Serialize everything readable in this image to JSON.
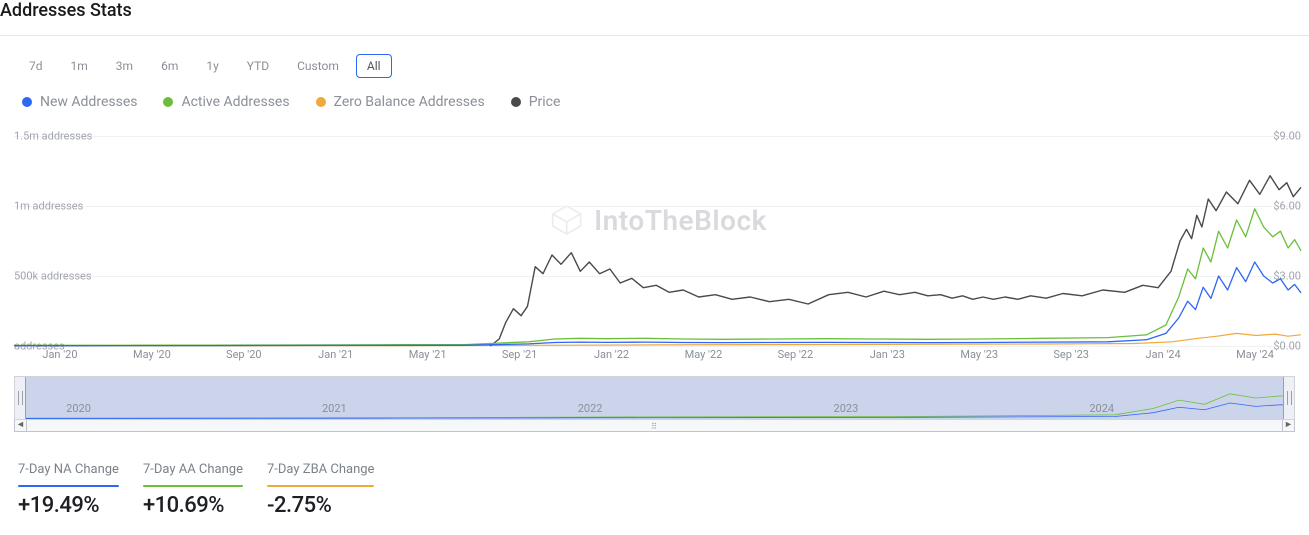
{
  "title": "Addresses Stats",
  "ranges": [
    "7d",
    "1m",
    "3m",
    "6m",
    "1y",
    "YTD",
    "Custom",
    "All"
  ],
  "selected_range": "All",
  "legend": [
    {
      "key": "new",
      "label": "New Addresses",
      "color": "#2e66f6"
    },
    {
      "key": "active",
      "label": "Active Addresses",
      "color": "#6bbf3b"
    },
    {
      "key": "zero",
      "label": "Zero Balance Addresses",
      "color": "#f0a83a"
    },
    {
      "key": "price",
      "label": "Price",
      "color": "#4a4a4a"
    }
  ],
  "chart": {
    "type": "line",
    "background_color": "#ffffff",
    "grid_color": "#f0f1f3",
    "left_axis": {
      "label_suffix": " addresses",
      "ticks": [
        {
          "v": 1500000,
          "label": "1.5m addresses"
        },
        {
          "v": 1000000,
          "label": "1m addresses"
        },
        {
          "v": 500000,
          "label": "500k addresses"
        },
        {
          "v": 0,
          "label": "addresses"
        }
      ],
      "min": 0,
      "max": 1500000
    },
    "right_axis": {
      "ticks": [
        {
          "v": 9,
          "label": "$9.00"
        },
        {
          "v": 6,
          "label": "$6.00"
        },
        {
          "v": 3,
          "label": "$3.00"
        },
        {
          "v": 0,
          "label": "$0.00"
        }
      ],
      "min": 0,
      "max": 9
    },
    "x_labels": [
      "Jan '20",
      "May '20",
      "Sep '20",
      "Jan '21",
      "May '21",
      "Sep '21",
      "Jan '22",
      "May '22",
      "Sep '22",
      "Jan '23",
      "May '23",
      "Sep '23",
      "Jan '24",
      "May '24"
    ],
    "x_count": 14,
    "watermark": "IntoTheBlock",
    "series": {
      "price": {
        "color": "#4a4a4a",
        "axis": "right",
        "width": 1.4,
        "data": [
          [
            0.37,
            0.0
          ],
          [
            0.377,
            0.3
          ],
          [
            0.382,
            1.0
          ],
          [
            0.388,
            1.6
          ],
          [
            0.394,
            1.3
          ],
          [
            0.399,
            1.7
          ],
          [
            0.405,
            3.4
          ],
          [
            0.411,
            3.1
          ],
          [
            0.418,
            3.9
          ],
          [
            0.425,
            3.5
          ],
          [
            0.433,
            4.0
          ],
          [
            0.44,
            3.2
          ],
          [
            0.447,
            3.6
          ],
          [
            0.455,
            3.1
          ],
          [
            0.463,
            3.3
          ],
          [
            0.471,
            2.7
          ],
          [
            0.48,
            2.9
          ],
          [
            0.489,
            2.5
          ],
          [
            0.499,
            2.6
          ],
          [
            0.509,
            2.3
          ],
          [
            0.52,
            2.4
          ],
          [
            0.532,
            2.1
          ],
          [
            0.545,
            2.2
          ],
          [
            0.558,
            2.0
          ],
          [
            0.572,
            2.1
          ],
          [
            0.587,
            1.9
          ],
          [
            0.602,
            2.0
          ],
          [
            0.617,
            1.8
          ],
          [
            0.633,
            2.2
          ],
          [
            0.648,
            2.3
          ],
          [
            0.662,
            2.1
          ],
          [
            0.676,
            2.35
          ],
          [
            0.688,
            2.2
          ],
          [
            0.7,
            2.3
          ],
          [
            0.71,
            2.15
          ],
          [
            0.72,
            2.2
          ],
          [
            0.729,
            2.05
          ],
          [
            0.737,
            2.15
          ],
          [
            0.745,
            2.0
          ],
          [
            0.753,
            2.1
          ],
          [
            0.761,
            2.0
          ],
          [
            0.77,
            2.1
          ],
          [
            0.78,
            2.0
          ],
          [
            0.79,
            2.15
          ],
          [
            0.802,
            2.05
          ],
          [
            0.815,
            2.25
          ],
          [
            0.83,
            2.15
          ],
          [
            0.846,
            2.4
          ],
          [
            0.863,
            2.3
          ],
          [
            0.877,
            2.6
          ],
          [
            0.889,
            2.5
          ],
          [
            0.899,
            3.2
          ],
          [
            0.906,
            4.5
          ],
          [
            0.911,
            5.0
          ],
          [
            0.915,
            4.6
          ],
          [
            0.919,
            5.6
          ],
          [
            0.923,
            5.1
          ],
          [
            0.928,
            6.3
          ],
          [
            0.934,
            5.8
          ],
          [
            0.942,
            6.6
          ],
          [
            0.951,
            6.1
          ],
          [
            0.96,
            7.1
          ],
          [
            0.968,
            6.5
          ],
          [
            0.976,
            7.3
          ],
          [
            0.983,
            6.7
          ],
          [
            0.989,
            7.0
          ],
          [
            0.994,
            6.4
          ],
          [
            1.0,
            6.8
          ]
        ]
      },
      "active": {
        "color": "#6bbf3b",
        "axis": "left",
        "width": 1.3,
        "data": [
          [
            0.0,
            4000
          ],
          [
            0.05,
            5000
          ],
          [
            0.1,
            6000
          ],
          [
            0.15,
            6000
          ],
          [
            0.2,
            7000
          ],
          [
            0.25,
            8000
          ],
          [
            0.3,
            9000
          ],
          [
            0.35,
            10000
          ],
          [
            0.4,
            30000
          ],
          [
            0.42,
            50000
          ],
          [
            0.44,
            55000
          ],
          [
            0.46,
            52000
          ],
          [
            0.49,
            55000
          ],
          [
            0.52,
            50000
          ],
          [
            0.55,
            48000
          ],
          [
            0.59,
            50000
          ],
          [
            0.63,
            52000
          ],
          [
            0.67,
            50000
          ],
          [
            0.71,
            48000
          ],
          [
            0.75,
            50000
          ],
          [
            0.8,
            55000
          ],
          [
            0.85,
            60000
          ],
          [
            0.88,
            80000
          ],
          [
            0.895,
            150000
          ],
          [
            0.905,
            350000
          ],
          [
            0.912,
            550000
          ],
          [
            0.918,
            480000
          ],
          [
            0.924,
            700000
          ],
          [
            0.93,
            600000
          ],
          [
            0.936,
            820000
          ],
          [
            0.943,
            700000
          ],
          [
            0.95,
            900000
          ],
          [
            0.957,
            780000
          ],
          [
            0.964,
            980000
          ],
          [
            0.971,
            850000
          ],
          [
            0.978,
            780000
          ],
          [
            0.984,
            820000
          ],
          [
            0.99,
            700000
          ],
          [
            0.995,
            760000
          ],
          [
            1.0,
            680000
          ]
        ]
      },
      "new": {
        "color": "#2e66f6",
        "axis": "left",
        "width": 1.3,
        "data": [
          [
            0.0,
            2000
          ],
          [
            0.05,
            2500
          ],
          [
            0.1,
            3000
          ],
          [
            0.15,
            3000
          ],
          [
            0.2,
            3500
          ],
          [
            0.25,
            4000
          ],
          [
            0.3,
            4500
          ],
          [
            0.35,
            5000
          ],
          [
            0.4,
            15000
          ],
          [
            0.42,
            25000
          ],
          [
            0.44,
            28000
          ],
          [
            0.46,
            26000
          ],
          [
            0.49,
            28000
          ],
          [
            0.52,
            25000
          ],
          [
            0.55,
            24000
          ],
          [
            0.59,
            25000
          ],
          [
            0.63,
            26000
          ],
          [
            0.67,
            25000
          ],
          [
            0.71,
            24000
          ],
          [
            0.75,
            25000
          ],
          [
            0.8,
            28000
          ],
          [
            0.85,
            30000
          ],
          [
            0.88,
            45000
          ],
          [
            0.895,
            90000
          ],
          [
            0.905,
            200000
          ],
          [
            0.912,
            320000
          ],
          [
            0.918,
            260000
          ],
          [
            0.924,
            420000
          ],
          [
            0.93,
            340000
          ],
          [
            0.936,
            500000
          ],
          [
            0.943,
            400000
          ],
          [
            0.95,
            560000
          ],
          [
            0.957,
            460000
          ],
          [
            0.964,
            600000
          ],
          [
            0.971,
            500000
          ],
          [
            0.978,
            450000
          ],
          [
            0.984,
            480000
          ],
          [
            0.99,
            400000
          ],
          [
            0.995,
            440000
          ],
          [
            1.0,
            380000
          ]
        ]
      },
      "zero": {
        "color": "#f0a83a",
        "axis": "left",
        "width": 1.2,
        "data": [
          [
            0.0,
            1000
          ],
          [
            0.1,
            1500
          ],
          [
            0.2,
            2000
          ],
          [
            0.3,
            2500
          ],
          [
            0.4,
            5000
          ],
          [
            0.5,
            8000
          ],
          [
            0.6,
            10000
          ],
          [
            0.7,
            12000
          ],
          [
            0.8,
            14000
          ],
          [
            0.87,
            18000
          ],
          [
            0.9,
            30000
          ],
          [
            0.92,
            55000
          ],
          [
            0.935,
            70000
          ],
          [
            0.95,
            90000
          ],
          [
            0.965,
            75000
          ],
          [
            0.98,
            85000
          ],
          [
            0.99,
            70000
          ],
          [
            1.0,
            80000
          ]
        ]
      }
    }
  },
  "brush": {
    "years": [
      "2020",
      "2021",
      "2022",
      "2023",
      "2024"
    ],
    "mini_active": {
      "color": "#6bbf3b",
      "data": [
        [
          0.0,
          0.02
        ],
        [
          0.3,
          0.03
        ],
        [
          0.5,
          0.05
        ],
        [
          0.7,
          0.06
        ],
        [
          0.86,
          0.1
        ],
        [
          0.89,
          0.25
        ],
        [
          0.91,
          0.45
        ],
        [
          0.93,
          0.35
        ],
        [
          0.95,
          0.6
        ],
        [
          0.97,
          0.5
        ],
        [
          0.99,
          0.55
        ],
        [
          1.0,
          0.48
        ]
      ]
    },
    "mini_new": {
      "color": "#2e66f6",
      "data": [
        [
          0.0,
          0.01
        ],
        [
          0.3,
          0.02
        ],
        [
          0.5,
          0.03
        ],
        [
          0.7,
          0.04
        ],
        [
          0.86,
          0.06
        ],
        [
          0.89,
          0.15
        ],
        [
          0.91,
          0.28
        ],
        [
          0.93,
          0.22
        ],
        [
          0.95,
          0.38
        ],
        [
          0.97,
          0.3
        ],
        [
          0.99,
          0.34
        ],
        [
          1.0,
          0.28
        ]
      ]
    }
  },
  "stats": [
    {
      "label": "7-Day NA Change",
      "value": "+19.49%",
      "underline": "#2e66f6"
    },
    {
      "label": "7-Day AA Change",
      "value": "+10.69%",
      "underline": "#6bbf3b"
    },
    {
      "label": "7-Day ZBA Change",
      "value": "-2.75%",
      "underline": "#f0a83a"
    }
  ]
}
